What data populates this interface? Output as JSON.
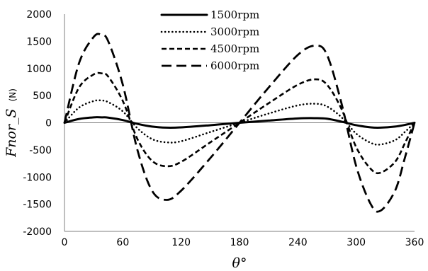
{
  "chart_data": {
    "type": "line",
    "xlabel": "θ°",
    "ylabel": "F nor_S (N)",
    "ylabel_main": "Fnor_S",
    "ylabel_unit": "(N)",
    "xlim": [
      0,
      360
    ],
    "ylim": [
      -2000,
      2000
    ],
    "x_ticks": [
      0,
      60,
      120,
      180,
      240,
      300,
      360
    ],
    "y_ticks": [
      2000,
      1500,
      1000,
      500,
      0,
      -500,
      -1000,
      -1500,
      -2000
    ],
    "grid": false,
    "legend_position": "top-center",
    "x": [
      0,
      15,
      30,
      38,
      45,
      60,
      75,
      90,
      105,
      120,
      150,
      180,
      210,
      240,
      258,
      270,
      285,
      300,
      315,
      325,
      340,
      350,
      360
    ],
    "series": [
      {
        "name": "1500rpm",
        "line_style": "solid",
        "values": [
          0,
          70,
          100,
          100,
          95,
          50,
          -20,
          -70,
          -90,
          -85,
          -45,
          0,
          40,
          80,
          85,
          75,
          20,
          -45,
          -85,
          -90,
          -70,
          -40,
          0
        ]
      },
      {
        "name": "3000rpm",
        "line_style": "dotted",
        "values": [
          0,
          280,
          400,
          410,
          380,
          210,
          -100,
          -300,
          -360,
          -340,
          -170,
          0,
          170,
          320,
          350,
          300,
          100,
          -200,
          -370,
          -400,
          -320,
          -170,
          0
        ]
      },
      {
        "name": "4500rpm",
        "line_style": "short-dash",
        "values": [
          0,
          650,
          890,
          910,
          850,
          400,
          -300,
          -700,
          -800,
          -720,
          -360,
          0,
          360,
          700,
          800,
          700,
          250,
          -450,
          -850,
          -920,
          -720,
          -380,
          0
        ]
      },
      {
        "name": "6000rpm",
        "line_style": "long-dash",
        "values": [
          0,
          1100,
          1580,
          1620,
          1500,
          700,
          -500,
          -1250,
          -1420,
          -1250,
          -650,
          0,
          650,
          1250,
          1420,
          1250,
          350,
          -800,
          -1500,
          -1620,
          -1250,
          -650,
          0
        ]
      }
    ]
  }
}
